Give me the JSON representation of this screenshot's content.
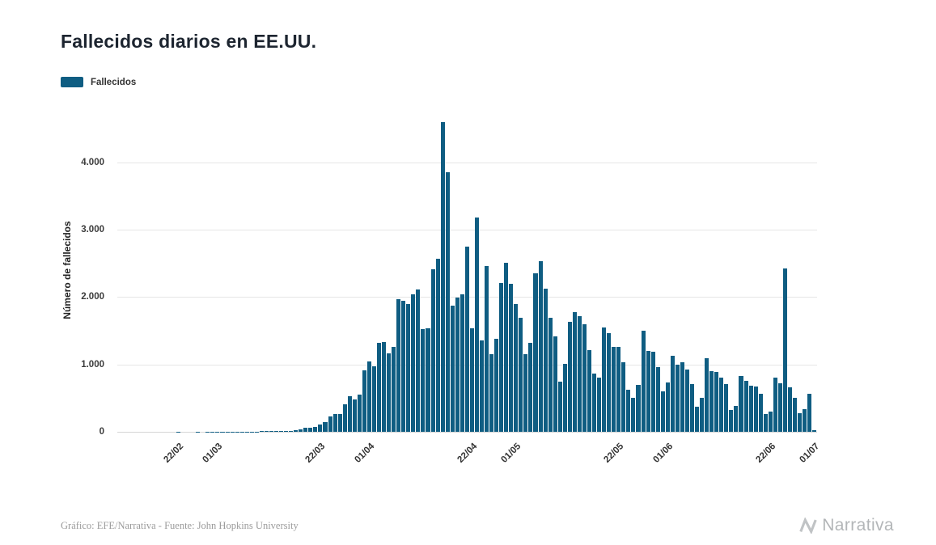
{
  "page": {
    "title": "Fallecidos diarios en EE.UU.",
    "credit": "Gráfico: EFE/Narrativa - Fuente: John Hopkins University",
    "brand": "Narrativa"
  },
  "chart_data": {
    "type": "bar",
    "title": "Fallecidos diarios en EE.UU.",
    "legend": [
      "Fallecidos"
    ],
    "xlabel": "",
    "ylabel": "Número de fallecidos",
    "ylim": [
      0,
      4800
    ],
    "grid": true,
    "legend_position": "top-left",
    "bar_color": "#0f5d82",
    "yticks": {
      "labels": [
        "0",
        "1.000",
        "2.000",
        "3.000",
        "4.000"
      ],
      "values": [
        0,
        1000,
        2000,
        3000,
        4000
      ]
    },
    "xticks": [
      "22/02",
      "01/03",
      "22/03",
      "01/04",
      "22/04",
      "01/05",
      "22/05",
      "01/06",
      "22/06",
      "01/07"
    ],
    "x": [
      "10/02",
      "11/02",
      "12/02",
      "13/02",
      "14/02",
      "15/02",
      "16/02",
      "17/02",
      "18/02",
      "19/02",
      "20/02",
      "21/02",
      "22/02",
      "23/02",
      "24/02",
      "25/02",
      "26/02",
      "27/02",
      "28/02",
      "29/02",
      "01/03",
      "02/03",
      "03/03",
      "04/03",
      "05/03",
      "06/03",
      "07/03",
      "08/03",
      "09/03",
      "10/03",
      "11/03",
      "12/03",
      "13/03",
      "14/03",
      "15/03",
      "16/03",
      "17/03",
      "18/03",
      "19/03",
      "20/03",
      "21/03",
      "22/03",
      "23/03",
      "24/03",
      "25/03",
      "26/03",
      "27/03",
      "28/03",
      "29/03",
      "30/03",
      "31/03",
      "01/04",
      "02/04",
      "03/04",
      "04/04",
      "05/04",
      "06/04",
      "07/04",
      "08/04",
      "09/04",
      "10/04",
      "11/04",
      "12/04",
      "13/04",
      "14/04",
      "15/04",
      "16/04",
      "17/04",
      "18/04",
      "19/04",
      "20/04",
      "21/04",
      "22/04",
      "23/04",
      "24/04",
      "25/04",
      "26/04",
      "27/04",
      "28/04",
      "29/04",
      "30/04",
      "01/05",
      "02/05",
      "03/05",
      "04/05",
      "05/05",
      "06/05",
      "07/05",
      "08/05",
      "09/05",
      "10/05",
      "11/05",
      "12/05",
      "13/05",
      "14/05",
      "15/05",
      "16/05",
      "17/05",
      "18/05",
      "19/05",
      "20/05",
      "21/05",
      "22/05",
      "23/05",
      "24/05",
      "25/05",
      "26/05",
      "27/05",
      "28/05",
      "29/05",
      "30/05",
      "31/05",
      "01/06",
      "02/06",
      "03/06",
      "04/06",
      "05/06",
      "06/06",
      "07/06",
      "08/06",
      "09/06",
      "10/06",
      "11/06",
      "12/06",
      "13/06",
      "14/06",
      "15/06",
      "16/06",
      "17/06",
      "18/06",
      "19/06",
      "20/06",
      "21/06",
      "22/06",
      "23/06",
      "24/06",
      "25/06",
      "26/06",
      "27/06",
      "28/06",
      "29/06",
      "30/06",
      "01/07"
    ],
    "values": [
      0,
      0,
      0,
      0,
      0,
      0,
      0,
      0,
      0,
      0,
      0,
      0,
      1,
      0,
      0,
      0,
      1,
      0,
      1,
      3,
      5,
      6,
      4,
      2,
      3,
      4,
      3,
      4,
      4,
      8,
      7,
      9,
      10,
      11,
      12,
      18,
      26,
      41,
      57,
      62,
      68,
      111,
      141,
      225,
      265,
      268,
      411,
      525,
      484,
      558,
      912,
      1049,
      968,
      1321,
      1331,
      1165,
      1255,
      1970,
      1940,
      1900,
      2035,
      2108,
      1528,
      1535,
      2407,
      2569,
      4591,
      3857,
      1867,
      1997,
      2043,
      2749,
      1541,
      3179,
      1352,
      2458,
      1157,
      1384,
      2207,
      2512,
      2201,
      1897,
      1691,
      1154,
      1324,
      2350,
      2528,
      2129,
      1687,
      1422,
      750,
      1008,
      1630,
      1772,
      1715,
      1595,
      1218,
      865,
      808,
      1552,
      1461,
      1263,
      1260,
      1036,
      620,
      505,
      693,
      1505,
      1199,
      1193,
      960,
      605,
      730,
      1134,
      995,
      1036,
      921,
      709,
      373,
      502,
      1093,
      906,
      892,
      802,
      710,
      330,
      380,
      832,
      760,
      690,
      672,
      570,
      267,
      295,
      800,
      722,
      2425,
      655,
      510,
      271,
      335,
      560,
      30
    ]
  }
}
